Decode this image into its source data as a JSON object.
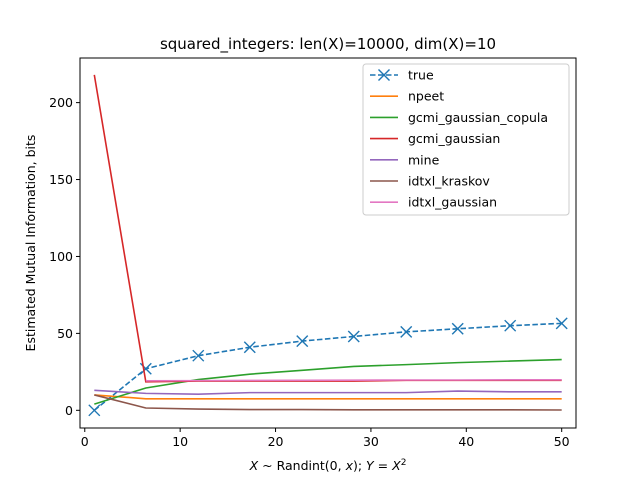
{
  "chart_data": {
    "type": "line",
    "title": "squared_integers: len(X)=10000, dim(X)=10",
    "xlabel_parts": [
      "X",
      " ~ Randint(0, ",
      "x",
      "); ",
      "Y",
      " = ",
      "X",
      "2"
    ],
    "ylabel": "Estimated Mutual Information, bits",
    "xlim": [
      -0.5,
      51.5
    ],
    "ylim": [
      -11.5,
      229
    ],
    "xticks": [
      0,
      10,
      20,
      30,
      40,
      50
    ],
    "yticks": [
      0,
      50,
      100,
      150,
      200
    ],
    "grid": false,
    "legend_position": "top-right",
    "x": [
      1,
      6.4,
      11.9,
      17.3,
      22.8,
      28.2,
      33.7,
      39.1,
      44.6,
      50
    ],
    "series": [
      {
        "name": "true",
        "color": "#1f77b4",
        "style": "dashed",
        "marker": "x",
        "values": [
          0,
          27,
          35.5,
          41,
          45,
          48,
          51,
          53,
          55,
          56.5
        ]
      },
      {
        "name": "npeet",
        "color": "#ff7f0e",
        "style": "solid",
        "values": [
          10,
          7.5,
          7.5,
          7.5,
          7.5,
          7.5,
          7.5,
          7.5,
          7.5,
          7.5
        ]
      },
      {
        "name": "gcmi_gaussian_copula",
        "color": "#2ca02c",
        "style": "solid",
        "values": [
          4,
          14.5,
          20,
          23.5,
          26,
          28.5,
          29.7,
          31,
          32,
          33
        ]
      },
      {
        "name": "gcmi_gaussian",
        "color": "#d62728",
        "style": "solid",
        "values": [
          218,
          18.5,
          19,
          19,
          19,
          19,
          19.5,
          19.5,
          19.5,
          19.5
        ]
      },
      {
        "name": "mine",
        "color": "#9467bd",
        "style": "solid",
        "values": [
          13,
          11,
          10.5,
          11.5,
          11.5,
          11.5,
          11.5,
          12.5,
          12,
          12
        ]
      },
      {
        "name": "idtxl_kraskov",
        "color": "#8c564b",
        "style": "solid",
        "values": [
          10,
          1.5,
          0.8,
          0.5,
          0.5,
          0.3,
          0.3,
          0.3,
          0.3,
          0.2
        ]
      },
      {
        "name": "idtxl_gaussian",
        "color": "#e377c2",
        "style": "solid",
        "values": [
          null,
          19.2,
          19.3,
          19.4,
          19.5,
          19.6,
          19.7,
          19.7,
          19.8,
          19.8
        ]
      }
    ]
  }
}
